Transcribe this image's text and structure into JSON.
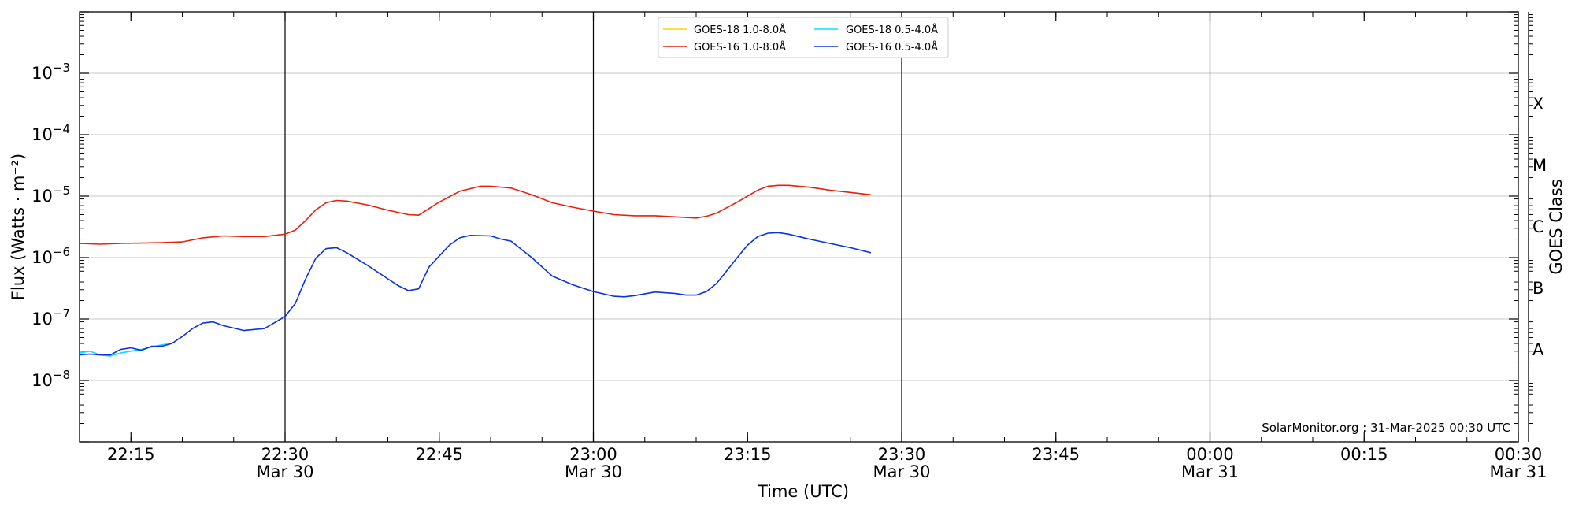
{
  "chart_data": {
    "type": "line",
    "title": "",
    "xlabel": "Time (UTC)",
    "ylabel": "Flux (Watts · m⁻²)",
    "y2label": "GOES Class",
    "yscale": "log",
    "ylim": [
      1e-09,
      0.01
    ],
    "xlim": [
      "2025-03-30 22:10",
      "2025-03-31 00:30"
    ],
    "grid": "horizontal",
    "legend_position": "top-center",
    "credit": "SolarMonitor.org : 31-Mar-2025 00:30 UTC",
    "y_ticks": [
      {
        "value": 1e-08,
        "base": "10",
        "exp": "−8"
      },
      {
        "value": 1e-07,
        "base": "10",
        "exp": "−7"
      },
      {
        "value": 1e-06,
        "base": "10",
        "exp": "−6"
      },
      {
        "value": 1e-05,
        "base": "10",
        "exp": "−5"
      },
      {
        "value": 0.0001,
        "base": "10",
        "exp": "−4"
      },
      {
        "value": 0.001,
        "base": "10",
        "exp": "−3"
      }
    ],
    "x_ticks": [
      {
        "time": "2025-03-30 22:15",
        "label": "22:15",
        "date": ""
      },
      {
        "time": "2025-03-30 22:30",
        "label": "22:30",
        "date": "Mar 30"
      },
      {
        "time": "2025-03-30 22:45",
        "label": "22:45",
        "date": ""
      },
      {
        "time": "2025-03-30 23:00",
        "label": "23:00",
        "date": "Mar 30"
      },
      {
        "time": "2025-03-30 23:15",
        "label": "23:15",
        "date": ""
      },
      {
        "time": "2025-03-30 23:30",
        "label": "23:30",
        "date": "Mar 30"
      },
      {
        "time": "2025-03-30 23:45",
        "label": "23:45",
        "date": ""
      },
      {
        "time": "2025-03-31 00:00",
        "label": "00:00",
        "date": "Mar 31"
      },
      {
        "time": "2025-03-31 00:15",
        "label": "00:15",
        "date": ""
      },
      {
        "time": "2025-03-31 00:30",
        "label": "00:30",
        "date": "Mar 31"
      }
    ],
    "vlines": [
      "2025-03-30 22:30",
      "2025-03-30 23:00",
      "2025-03-30 23:30",
      "2025-03-31 00:00"
    ],
    "goes_classes": [
      {
        "label": "A",
        "value": 3.16e-08
      },
      {
        "label": "B",
        "value": 3.16e-07
      },
      {
        "label": "C",
        "value": 3.16e-06
      },
      {
        "label": "M",
        "value": 3.16e-05
      },
      {
        "label": "X",
        "value": 0.000316
      }
    ],
    "series": [
      {
        "name": "GOES-18 1.0-8.0Å",
        "color": "#ffd400",
        "x": [],
        "values": []
      },
      {
        "name": "GOES-18 0.5-4.0Å",
        "color": "#00e5ff",
        "x": [
          "2025-03-30 22:10",
          "2025-03-30 22:11",
          "2025-03-30 22:12",
          "2025-03-30 22:13",
          "2025-03-30 22:14",
          "2025-03-30 22:15",
          "2025-03-30 22:16",
          "2025-03-30 22:17",
          "2025-03-30 22:18",
          "2025-03-30 22:19"
        ],
        "values": [
          2.8e-08,
          3e-08,
          2.6e-08,
          2.5e-08,
          2.8e-08,
          3e-08,
          3.2e-08,
          3.5e-08,
          3.8e-08,
          4e-08
        ]
      },
      {
        "name": "GOES-16 1.0-8.0Å",
        "color": "#e8200a",
        "x": [
          "2025-03-30 22:10",
          "2025-03-30 22:12",
          "2025-03-30 22:14",
          "2025-03-30 22:16",
          "2025-03-30 22:18",
          "2025-03-30 22:20",
          "2025-03-30 22:22",
          "2025-03-30 22:24",
          "2025-03-30 22:26",
          "2025-03-30 22:28",
          "2025-03-30 22:30",
          "2025-03-30 22:31",
          "2025-03-30 22:32",
          "2025-03-30 22:33",
          "2025-03-30 22:34",
          "2025-03-30 22:35",
          "2025-03-30 22:36",
          "2025-03-30 22:38",
          "2025-03-30 22:40",
          "2025-03-30 22:42",
          "2025-03-30 22:43",
          "2025-03-30 22:45",
          "2025-03-30 22:47",
          "2025-03-30 22:49",
          "2025-03-30 22:50",
          "2025-03-30 22:52",
          "2025-03-30 22:54",
          "2025-03-30 22:56",
          "2025-03-30 22:58",
          "2025-03-30 23:00",
          "2025-03-30 23:02",
          "2025-03-30 23:04",
          "2025-03-30 23:06",
          "2025-03-30 23:08",
          "2025-03-30 23:10",
          "2025-03-30 23:11",
          "2025-03-30 23:12",
          "2025-03-30 23:14",
          "2025-03-30 23:16",
          "2025-03-30 23:17",
          "2025-03-30 23:18",
          "2025-03-30 23:19",
          "2025-03-30 23:21",
          "2025-03-30 23:23",
          "2025-03-30 23:25",
          "2025-03-30 23:27"
        ],
        "values": [
          1.7e-06,
          1.65e-06,
          1.7e-06,
          1.72e-06,
          1.75e-06,
          1.8e-06,
          2.1e-06,
          2.25e-06,
          2.2e-06,
          2.2e-06,
          2.4e-06,
          2.8e-06,
          4e-06,
          6e-06,
          7.8e-06,
          8.5e-06,
          8.3e-06,
          7.2e-06,
          5.9e-06,
          5e-06,
          4.9e-06,
          8e-06,
          1.2e-05,
          1.45e-05,
          1.45e-05,
          1.35e-05,
          1.05e-05,
          7.8e-06,
          6.6e-06,
          5.7e-06,
          5e-06,
          4.8e-06,
          4.8e-06,
          4.6e-06,
          4.4e-06,
          4.7e-06,
          5.3e-06,
          8e-06,
          1.25e-05,
          1.45e-05,
          1.5e-05,
          1.5e-05,
          1.4e-05,
          1.25e-05,
          1.15e-05,
          1.05e-05
        ]
      },
      {
        "name": "GOES-16 0.5-4.0Å",
        "color": "#0a32e0",
        "x": [
          "2025-03-30 22:10",
          "2025-03-30 22:11",
          "2025-03-30 22:12",
          "2025-03-30 22:13",
          "2025-03-30 22:14",
          "2025-03-30 22:15",
          "2025-03-30 22:16",
          "2025-03-30 22:17",
          "2025-03-30 22:18",
          "2025-03-30 22:19",
          "2025-03-30 22:20",
          "2025-03-30 22:21",
          "2025-03-30 22:22",
          "2025-03-30 22:23",
          "2025-03-30 22:24",
          "2025-03-30 22:26",
          "2025-03-30 22:28",
          "2025-03-30 22:30",
          "2025-03-30 22:31",
          "2025-03-30 22:32",
          "2025-03-30 22:33",
          "2025-03-30 22:34",
          "2025-03-30 22:35",
          "2025-03-30 22:36",
          "2025-03-30 22:38",
          "2025-03-30 22:40",
          "2025-03-30 22:41",
          "2025-03-30 22:42",
          "2025-03-30 22:43",
          "2025-03-30 22:44",
          "2025-03-30 22:46",
          "2025-03-30 22:47",
          "2025-03-30 22:48",
          "2025-03-30 22:50",
          "2025-03-30 22:51",
          "2025-03-30 22:52",
          "2025-03-30 22:54",
          "2025-03-30 22:56",
          "2025-03-30 22:58",
          "2025-03-30 23:00",
          "2025-03-30 23:02",
          "2025-03-30 23:03",
          "2025-03-30 23:04",
          "2025-03-30 23:06",
          "2025-03-30 23:08",
          "2025-03-30 23:09",
          "2025-03-30 23:10",
          "2025-03-30 23:11",
          "2025-03-30 23:12",
          "2025-03-30 23:14",
          "2025-03-30 23:15",
          "2025-03-30 23:16",
          "2025-03-30 23:17",
          "2025-03-30 23:18",
          "2025-03-30 23:19",
          "2025-03-30 23:21",
          "2025-03-30 23:23",
          "2025-03-30 23:25",
          "2025-03-30 23:27"
        ],
        "values": [
          2.6e-08,
          2.7e-08,
          2.6e-08,
          2.6e-08,
          3.2e-08,
          3.4e-08,
          3.1e-08,
          3.6e-08,
          3.6e-08,
          4e-08,
          5.2e-08,
          7e-08,
          8.6e-08,
          9e-08,
          7.8e-08,
          6.5e-08,
          7e-08,
          1.1e-07,
          1.8e-07,
          4.5e-07,
          9.8e-07,
          1.4e-06,
          1.45e-06,
          1.2e-06,
          7.5e-07,
          4.5e-07,
          3.5e-07,
          2.9e-07,
          3.1e-07,
          7e-07,
          1.6e-06,
          2.1e-06,
          2.3e-06,
          2.25e-06,
          2e-06,
          1.85e-06,
          1e-06,
          5e-07,
          3.6e-07,
          2.8e-07,
          2.35e-07,
          2.3e-07,
          2.4e-07,
          2.75e-07,
          2.6e-07,
          2.45e-07,
          2.45e-07,
          2.8e-07,
          3.8e-07,
          1e-06,
          1.6e-06,
          2.2e-06,
          2.5e-06,
          2.55e-06,
          2.4e-06,
          2e-06,
          1.7e-06,
          1.45e-06,
          1.2e-06
        ]
      }
    ]
  }
}
